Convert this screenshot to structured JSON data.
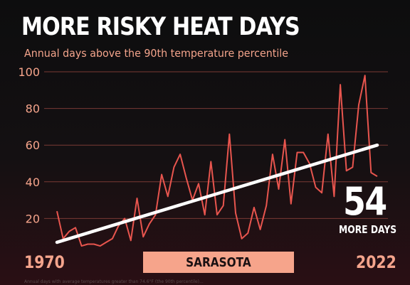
{
  "title": "MORE RISKY HEAT DAYS",
  "subtitle": "Annual days above the 90th temperature percentile",
  "location_label": "SARASOTA",
  "callout": {
    "number": "54",
    "caption": "MORE DAYS"
  },
  "year_start_label": "1970",
  "year_end_label": "2022",
  "footnote": "Annual days with average temperatures greater than 74.6°F (the 90th percentile)...",
  "colors": {
    "background": "#111012",
    "series": "#e8554e",
    "trend": "#ffffff",
    "accent": "#f6a48b",
    "grid": "#7a3a34"
  },
  "chart_data": {
    "type": "line",
    "title": "MORE RISKY HEAT DAYS",
    "subtitle": "Annual days above the 90th temperature percentile",
    "xlabel": "",
    "ylabel": "",
    "xlim": [
      1970,
      2022
    ],
    "ylim": [
      0,
      100
    ],
    "yticks": [
      20,
      40,
      60,
      80,
      100
    ],
    "grid": true,
    "x": [
      1970,
      1971,
      1972,
      1973,
      1974,
      1975,
      1976,
      1977,
      1978,
      1979,
      1980,
      1981,
      1982,
      1983,
      1984,
      1985,
      1986,
      1987,
      1988,
      1989,
      1990,
      1991,
      1992,
      1993,
      1994,
      1995,
      1996,
      1997,
      1998,
      1999,
      2000,
      2001,
      2002,
      2003,
      2004,
      2005,
      2006,
      2007,
      2008,
      2009,
      2010,
      2011,
      2012,
      2013,
      2014,
      2015,
      2016,
      2017,
      2018,
      2019,
      2020,
      2021,
      2022
    ],
    "series": [
      {
        "name": "",
        "values": [
          24,
          9,
          13,
          15,
          5,
          6,
          6,
          5,
          7,
          9,
          16,
          20,
          8,
          31,
          10,
          17,
          22,
          44,
          32,
          48,
          55,
          42,
          30,
          39,
          22,
          51,
          22,
          27,
          66,
          23,
          9,
          12,
          26,
          14,
          27,
          55,
          36,
          63,
          28,
          56,
          56,
          50,
          37,
          34,
          66,
          32,
          93,
          46,
          48,
          82,
          98,
          45,
          43
        ]
      },
      {
        "name": "trend",
        "x": [
          1970,
          2022
        ],
        "values": [
          7,
          60
        ]
      }
    ]
  }
}
